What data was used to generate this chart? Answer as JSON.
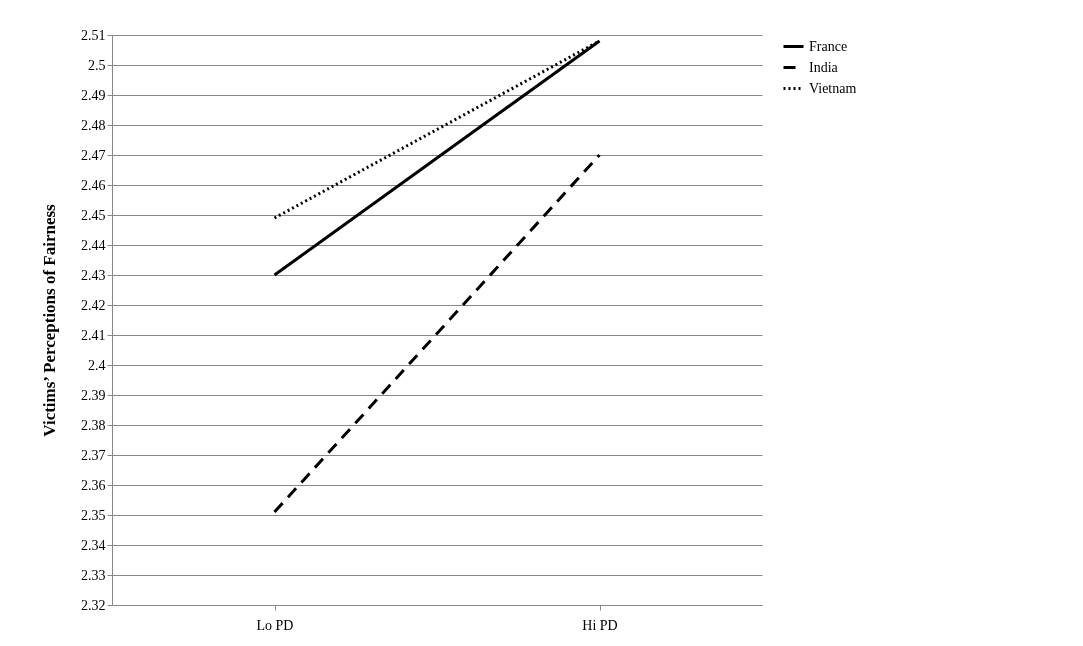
{
  "chart_data": {
    "type": "line",
    "ylabel": "Victims’ Perceptions of Fairness",
    "categories": [
      "Lo PD",
      "Hi PD"
    ],
    "series": [
      {
        "name": "France",
        "color": "#000000",
        "line_style": "solid",
        "values": [
          2.43,
          2.508
        ]
      },
      {
        "name": "India",
        "color": "#000000",
        "line_style": "dashed",
        "values": [
          2.351,
          2.47
        ]
      },
      {
        "name": "Vietnam",
        "color": "#000000",
        "line_style": "dotted",
        "values": [
          2.449,
          2.508
        ]
      }
    ],
    "ylim": [
      2.32,
      2.51
    ],
    "yticks": [
      2.32,
      2.33,
      2.34,
      2.35,
      2.36,
      2.37,
      2.38,
      2.39,
      2.4,
      2.41,
      2.42,
      2.43,
      2.44,
      2.45,
      2.46,
      2.47,
      2.48,
      2.49,
      2.5,
      2.51
    ],
    "grid": "y",
    "legend": "right",
    "marker": "none"
  }
}
